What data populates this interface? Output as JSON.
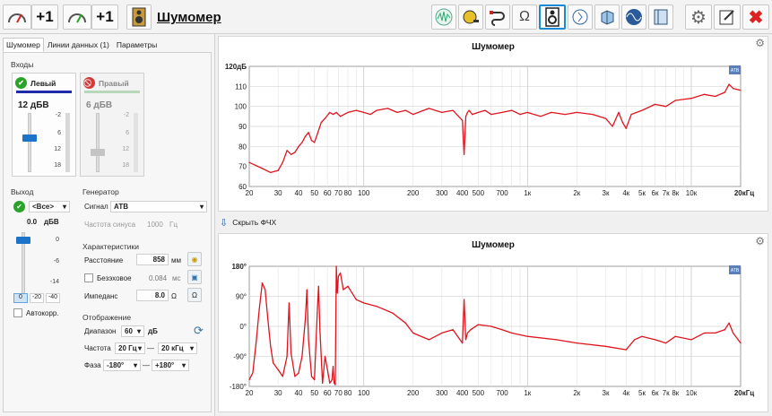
{
  "app": {
    "title": "Шумомер"
  },
  "toolbar": {
    "plus_a": "+1",
    "plus_b": "+1",
    "icons": [
      "gauge-icon",
      "gauge-loop-icon",
      "speaker-icon",
      "spectrum-icon",
      "tape-measure-icon",
      "cable-icon",
      "ohm-icon",
      "speaker-selected-icon",
      "speaker-info-icon",
      "room-icon",
      "oscilloscope-icon",
      "panel-icon",
      "settings-icon",
      "edit-icon",
      "close-icon"
    ]
  },
  "tabs": [
    "Шумомер",
    "Линии данных (1)",
    "Параметры"
  ],
  "inputs": {
    "group_label": "Входы",
    "left": {
      "label": "Левый",
      "gain": "12 дБВ",
      "ticks": [
        "-2",
        "6",
        "12",
        "18"
      ],
      "level": 0.37
    },
    "right": {
      "label": "Правый",
      "gain": "6 дБВ",
      "ticks": [
        "-2",
        "6",
        "12",
        "18"
      ],
      "level": 0.6
    }
  },
  "output": {
    "group_label": "Выход",
    "channel": "<Все>",
    "value": "0.0",
    "unit": "дБВ",
    "ticks": [
      "0",
      "-6",
      "-14"
    ],
    "range_buttons": [
      "0",
      "-20",
      "-40"
    ],
    "autocorr_label": "Автокорр."
  },
  "generator": {
    "group_label": "Генератор",
    "signal_label": "Сигнал",
    "signal_value": "АТВ",
    "sine_freq_label": "Частота синуса",
    "sine_freq_value": "1000",
    "sine_freq_unit": "Гц"
  },
  "characteristics": {
    "group_label": "Характеристики",
    "distance_label": "Расстояние",
    "distance_value": "858",
    "distance_unit": "мм",
    "anechoic_label": "Безэховое",
    "anechoic_value": "0.084",
    "anechoic_unit": "мс",
    "impedance_label": "Импеданс",
    "impedance_value": "8.0",
    "impedance_unit": "Ω"
  },
  "display": {
    "group_label": "Отображение",
    "range_label": "Диапазон",
    "range_value": "60",
    "range_unit": "дБ",
    "freq_label": "Частота",
    "freq_from": "20 Гц",
    "freq_to": "20 кГц",
    "phase_label": "Фаза",
    "phase_from": "-180°",
    "phase_to": "+180°",
    "dash": "—"
  },
  "hide_button": "Скрыть ФЧХ",
  "badge": "ATB",
  "colors": {
    "series": "#e0141e",
    "accent": "#1b8ad6",
    "ok": "#2aa32a",
    "off": "#d23a3a"
  },
  "chart_data": [
    {
      "type": "line",
      "title": "Шумомер",
      "xscale": "log",
      "xlim": [
        20,
        20000
      ],
      "ylim": [
        60,
        120
      ],
      "ytick_labels": [
        "120дБ",
        "110",
        "100",
        "90",
        "80",
        "70",
        "60"
      ],
      "xtick_labels": [
        "20",
        "30",
        "40",
        "50",
        "60",
        "70",
        "80",
        "100",
        "200",
        "300",
        "400",
        "500",
        "700",
        "1к",
        "2к",
        "3к",
        "4к",
        "5к",
        "6к",
        "7к",
        "8к",
        "10к",
        "20кГц"
      ],
      "grid": true,
      "series": [
        {
          "x": [
            20,
            24,
            27,
            30,
            32,
            34,
            36,
            38,
            40,
            42,
            44,
            46,
            48,
            50,
            52,
            55,
            58,
            62,
            65,
            68,
            72,
            76,
            80,
            90,
            100,
            110,
            120,
            140,
            160,
            180,
            200,
            250,
            300,
            350,
            400,
            410,
            420,
            430,
            440,
            460,
            500,
            550,
            600,
            700,
            800,
            900,
            1000,
            1200,
            1400,
            1700,
            2000,
            2500,
            3000,
            3300,
            3600,
            3800,
            4000,
            4300,
            5000,
            6000,
            7000,
            8000,
            10000,
            12000,
            14000,
            16000,
            17000,
            18000,
            20000
          ],
          "y": [
            72,
            69,
            67,
            68,
            72,
            78,
            76,
            77,
            80,
            82,
            85,
            87,
            83,
            82,
            86,
            92,
            94,
            97,
            96,
            97,
            95,
            96,
            97,
            98,
            97,
            96,
            98,
            99,
            97,
            98,
            96,
            99,
            97,
            98,
            93,
            76,
            95,
            97,
            98,
            96,
            97,
            98,
            96,
            97,
            98,
            96,
            97,
            95,
            97,
            96,
            97,
            96,
            94,
            90,
            97,
            92,
            89,
            96,
            98,
            101,
            100,
            103,
            104,
            106,
            105,
            107,
            111,
            109,
            108
          ]
        }
      ]
    },
    {
      "type": "line",
      "title": "Шумомер",
      "xscale": "log",
      "xlim": [
        20,
        20000
      ],
      "ylim": [
        -180,
        180
      ],
      "ytick_labels": [
        "180°",
        "90°",
        "0°",
        "-90°",
        "-180°"
      ],
      "xtick_labels": [
        "20",
        "30",
        "40",
        "50",
        "60",
        "70",
        "80",
        "100",
        "200",
        "300",
        "400",
        "500",
        "700",
        "1к",
        "2к",
        "3к",
        "4к",
        "5к",
        "6к",
        "7к",
        "8к",
        "10к",
        "20кГц"
      ],
      "grid": true,
      "series": [
        {
          "x": [
            20,
            21,
            22,
            23,
            24,
            25,
            26,
            27,
            28,
            30,
            32,
            34,
            35,
            36,
            38,
            40,
            42,
            44,
            45,
            46,
            48,
            50,
            52,
            53,
            54,
            56,
            58,
            60,
            62,
            64,
            65,
            66,
            67,
            68,
            69,
            70,
            72,
            75,
            80,
            90,
            100,
            120,
            150,
            180,
            200,
            250,
            300,
            350,
            400,
            410,
            420,
            430,
            450,
            500,
            600,
            700,
            800,
            1000,
            1500,
            2000,
            3000,
            4000,
            4500,
            5000,
            6000,
            7000,
            8000,
            10000,
            12000,
            14000,
            16000,
            17000,
            18000,
            20000
          ],
          "y": [
            -160,
            -140,
            -50,
            50,
            130,
            110,
            20,
            -60,
            -110,
            -130,
            -150,
            -90,
            70,
            -80,
            -150,
            -140,
            -90,
            20,
            110,
            -40,
            -150,
            -160,
            40,
            120,
            -10,
            -170,
            -90,
            -130,
            -170,
            -160,
            -120,
            -170,
            -175,
            180,
            100,
            150,
            160,
            110,
            120,
            80,
            70,
            60,
            40,
            10,
            -20,
            -40,
            -20,
            -10,
            -50,
            80,
            -40,
            -20,
            -10,
            5,
            0,
            -10,
            -20,
            -30,
            -40,
            -50,
            -60,
            -70,
            -40,
            -30,
            -40,
            -50,
            -30,
            -40,
            -20,
            -20,
            -10,
            10,
            -20,
            -50
          ]
        }
      ]
    }
  ]
}
